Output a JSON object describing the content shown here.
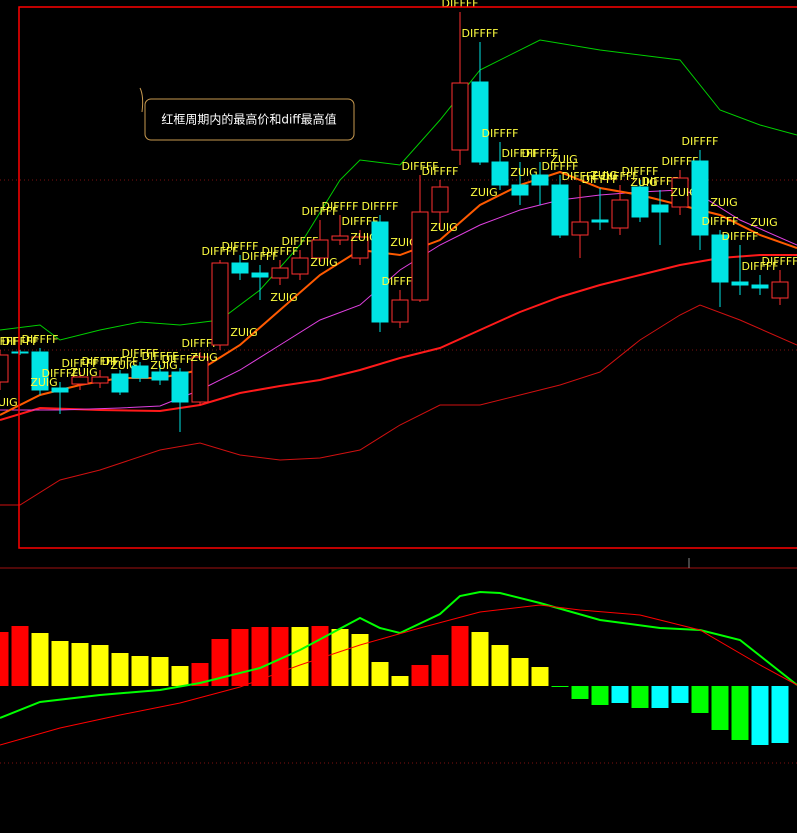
{
  "chart_data": [
    {
      "type": "candlestick",
      "annotation": "红框周期内的最高价和diff最高值",
      "candle_label": "DIFFFF",
      "line_label": "ZUIG",
      "up_color": "#ff3030",
      "down_color": "#00e5e5",
      "xlim": [
        0,
        797
      ],
      "ylim": [
        0,
        560
      ],
      "x": [
        0,
        20,
        40,
        60,
        80,
        100,
        120,
        140,
        160,
        180,
        200,
        220,
        240,
        260,
        280,
        300,
        320,
        340,
        360,
        380,
        400,
        420,
        440,
        460,
        480,
        500,
        520,
        540,
        560,
        580,
        600,
        620,
        640,
        660,
        680,
        700,
        720,
        740,
        760,
        780
      ],
      "open": [
        178,
        208,
        208,
        172,
        176,
        177,
        186,
        194,
        188,
        188,
        158,
        215,
        297,
        287,
        282,
        286,
        302,
        320,
        302,
        338,
        238,
        260,
        348,
        410,
        478,
        398,
        375,
        385,
        375,
        325,
        340,
        332,
        373,
        355,
        353,
        399,
        325,
        278,
        275,
        262
      ],
      "close": [
        205,
        208,
        170,
        168,
        183,
        183,
        168,
        182,
        180,
        158,
        203,
        297,
        287,
        283,
        292,
        302,
        320,
        324,
        323,
        238,
        260,
        348,
        373,
        477,
        398,
        375,
        365,
        375,
        325,
        338,
        338,
        360,
        343,
        348,
        382,
        325,
        278,
        275,
        272,
        278
      ],
      "high": [
        210,
        210,
        212,
        178,
        188,
        190,
        190,
        198,
        195,
        192,
        208,
        300,
        305,
        295,
        300,
        310,
        340,
        345,
        330,
        345,
        270,
        385,
        380,
        548,
        518,
        418,
        398,
        398,
        385,
        375,
        372,
        375,
        380,
        370,
        390,
        410,
        330,
        315,
        285,
        290
      ],
      "low": [
        170,
        205,
        165,
        146,
        170,
        172,
        165,
        178,
        175,
        128,
        155,
        210,
        280,
        260,
        275,
        280,
        298,
        315,
        295,
        228,
        232,
        258,
        330,
        395,
        395,
        370,
        355,
        355,
        322,
        302,
        330,
        325,
        338,
        315,
        345,
        310,
        253,
        265,
        265,
        255
      ],
      "series": [
        {
          "color": "#ff1a1a",
          "x": [
            0,
            40,
            100,
            160,
            200,
            240,
            280,
            320,
            360,
            400,
            440,
            480,
            520,
            560,
            600,
            640,
            680,
            720,
            760,
            797
          ],
          "values": [
            140,
            152,
            150,
            149,
            155,
            167,
            174,
            180,
            190,
            202,
            212,
            230,
            248,
            263,
            275,
            285,
            295,
            302,
            305,
            305
          ]
        },
        {
          "color": "#e040e0",
          "x": [
            0,
            60,
            120,
            160,
            200,
            240,
            280,
            320,
            360,
            400,
            440,
            480,
            520,
            560,
            600,
            640,
            680,
            700,
            740,
            797
          ],
          "values": [
            150,
            150,
            152,
            154,
            170,
            190,
            215,
            240,
            255,
            290,
            315,
            335,
            350,
            360,
            365,
            368,
            370,
            365,
            340,
            315
          ]
        },
        {
          "color": "#ff5a00",
          "x": [
            0,
            40,
            80,
            120,
            160,
            200,
            240,
            280,
            320,
            360,
            400,
            440,
            480,
            520,
            560,
            600,
            640,
            680,
            720,
            760,
            797
          ],
          "values": [
            145,
            165,
            175,
            182,
            182,
            190,
            215,
            250,
            285,
            310,
            305,
            320,
            355,
            375,
            388,
            372,
            365,
            355,
            345,
            325,
            312
          ]
        },
        {
          "color": "#00d000",
          "x": [
            0,
            40,
            60,
            100,
            140,
            180,
            220,
            260,
            300,
            340,
            360,
            400,
            440,
            480,
            540,
            600,
            680,
            720,
            760,
            797
          ],
          "values": [
            230,
            235,
            220,
            230,
            238,
            235,
            240,
            270,
            315,
            380,
            400,
            395,
            440,
            490,
            520,
            510,
            500,
            450,
            435,
            425
          ]
        },
        {
          "color": "#d01010",
          "x": [
            0,
            20,
            60,
            100,
            160,
            200,
            240,
            280,
            320,
            360,
            400,
            440,
            480,
            520,
            560,
            600,
            640,
            680,
            700,
            740,
            797
          ],
          "values": [
            55,
            55,
            80,
            90,
            110,
            117,
            105,
            100,
            102,
            110,
            135,
            155,
            155,
            165,
            175,
            188,
            220,
            245,
            255,
            240,
            215
          ]
        }
      ]
    },
    {
      "type": "bar",
      "xlim": [
        0,
        797
      ],
      "ylim": [
        -147,
        116
      ],
      "x": [
        0,
        20,
        40,
        60,
        80,
        100,
        120,
        140,
        160,
        180,
        200,
        220,
        240,
        260,
        280,
        300,
        320,
        340,
        360,
        380,
        400,
        420,
        440,
        460,
        480,
        500,
        520,
        540,
        560,
        580,
        600,
        620,
        640,
        660,
        680,
        700,
        720,
        740,
        760,
        780
      ],
      "values": [
        54,
        60,
        53,
        45,
        43,
        41,
        33,
        30,
        29,
        20,
        23,
        47,
        57,
        59,
        59,
        59,
        60,
        57,
        52,
        24,
        10,
        21,
        31,
        60,
        54,
        41,
        28,
        19,
        -1,
        -13,
        -19,
        -17,
        -22,
        -22,
        -17,
        -27,
        -44,
        -54,
        -59,
        -57
      ],
      "colors": [
        "#ff0000",
        "#ff0000",
        "#ffff00",
        "#ffff00",
        "#ffff00",
        "#ffff00",
        "#ffff00",
        "#ffff00",
        "#ffff00",
        "#ffff00",
        "#ff0000",
        "#ff0000",
        "#ff0000",
        "#ff0000",
        "#ff0000",
        "#ffff00",
        "#ff0000",
        "#ffff00",
        "#ffff00",
        "#ffff00",
        "#ffff00",
        "#ff0000",
        "#ff0000",
        "#ff0000",
        "#ffff00",
        "#ffff00",
        "#ffff00",
        "#ffff00",
        "#00ff00",
        "#00ff00",
        "#00ff00",
        "#00ffff",
        "#00ff00",
        "#00ffff",
        "#00ffff",
        "#00ff00",
        "#00ff00",
        "#00ff00",
        "#00ffff",
        "#00ffff"
      ],
      "series": [
        {
          "color": "#00ff00",
          "x": [
            0,
            40,
            100,
            160,
            200,
            260,
            300,
            360,
            380,
            400,
            440,
            460,
            480,
            500,
            540,
            600,
            660,
            700,
            740,
            797
          ],
          "values": [
            -32,
            -16,
            -9,
            -4,
            3,
            18,
            36,
            68,
            58,
            53,
            72,
            90,
            94,
            93,
            83,
            66,
            58,
            56,
            46,
            1
          ]
        },
        {
          "color": "#ff0000",
          "x": [
            0,
            60,
            120,
            180,
            240,
            300,
            360,
            420,
            480,
            540,
            580,
            640,
            700,
            760,
            797
          ],
          "values": [
            -59,
            -42,
            -29,
            -17,
            -1,
            21,
            41,
            58,
            74,
            81,
            76,
            71,
            56,
            21,
            1
          ]
        }
      ]
    }
  ]
}
